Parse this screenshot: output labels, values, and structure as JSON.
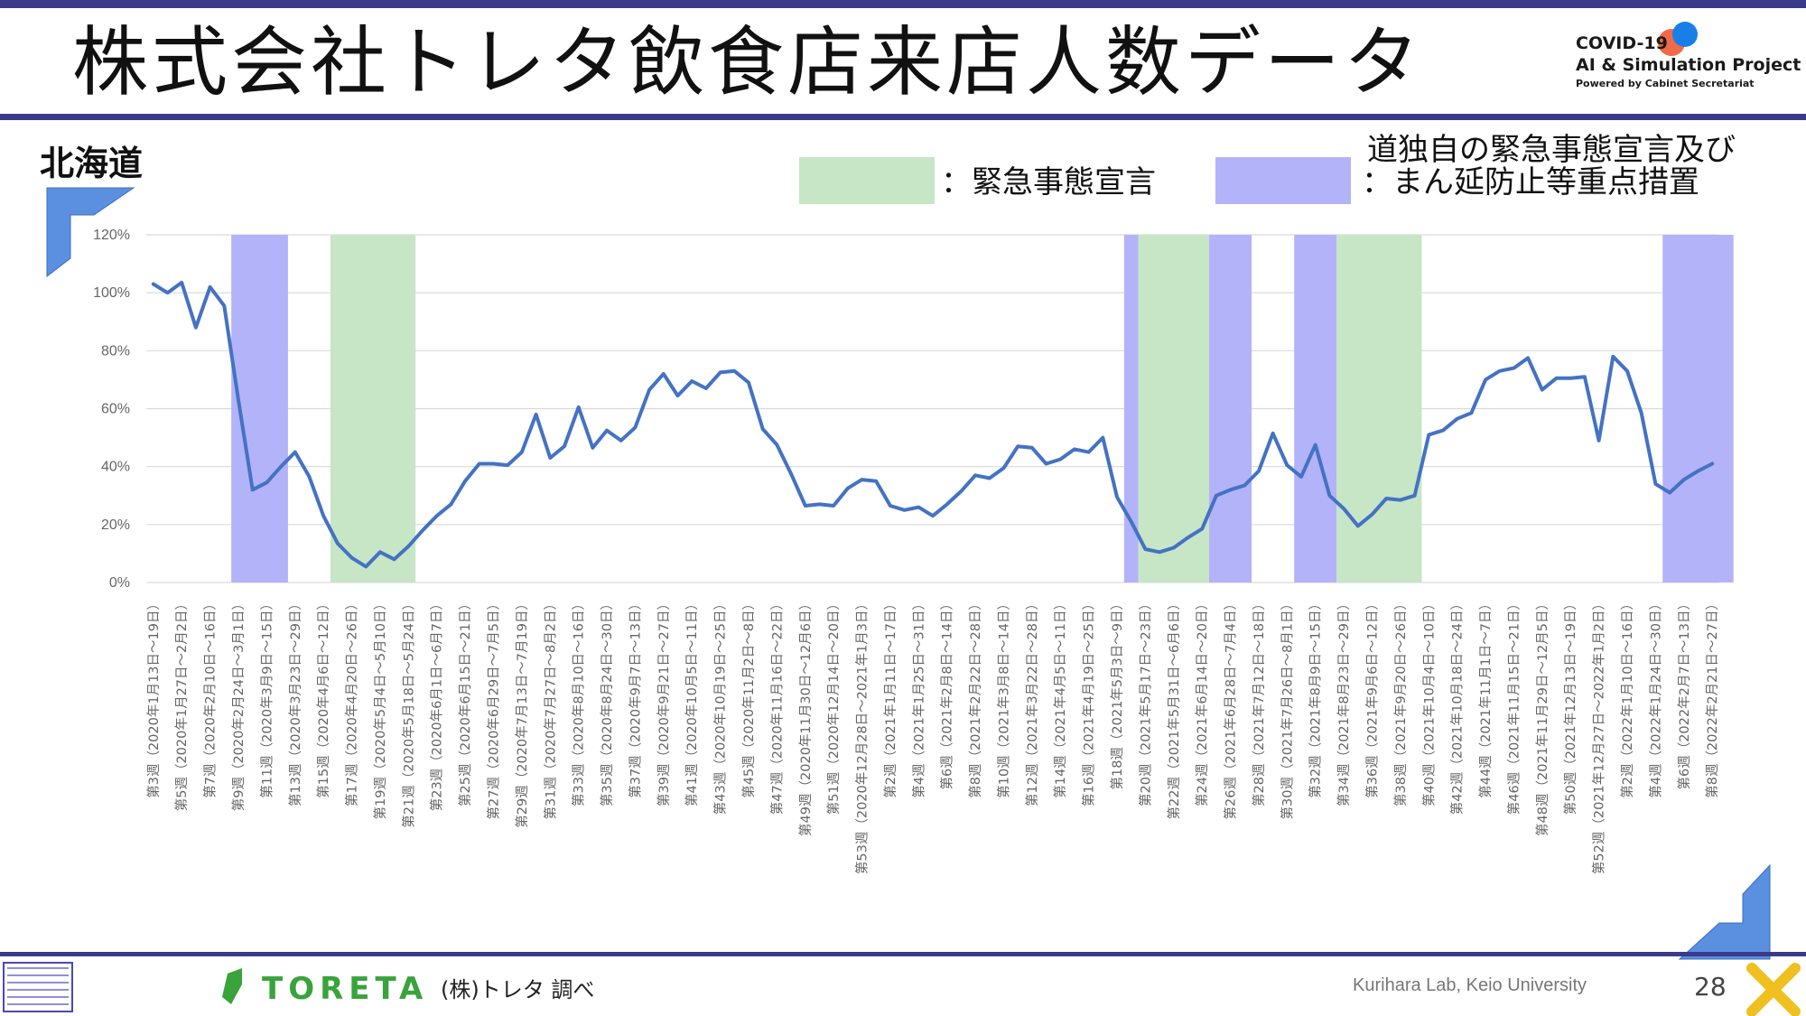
{
  "slide": {
    "title": "株式会社トレタ飲食店来店人数データ",
    "region": "北海道",
    "source": "(株)トレタ 調べ",
    "toreta_logo": "TORETA",
    "credit": "Kurihara Lab, Keio University",
    "page_number": "28"
  },
  "covid_logo": {
    "line1": "COVID-19",
    "line2": "AI & Simulation Project",
    "line3": "Powered by Cabinet Secretariat"
  },
  "legend": {
    "emergency_label": "：緊急事態宣言",
    "emergency_color": "#c6e6c6",
    "priority_note": "道独自の緊急事態宣言及び",
    "priority_label": "：まん延防止等重点措置",
    "priority_color": "#b3b3fa"
  },
  "chart_data": {
    "type": "line",
    "series": [
      {
        "color": "#4472c4",
        "values": [
          103,
          100,
          103.5,
          88,
          102,
          95.5,
          63,
          32,
          34.5,
          40,
          45,
          36.5,
          23,
          13.5,
          8.5,
          5.5,
          10.5,
          8,
          12.5,
          18,
          23,
          27,
          35,
          41,
          41,
          40.5,
          45,
          58,
          43,
          47,
          60.5,
          46.5,
          52.5,
          49,
          53.5,
          66.5,
          72,
          64.5,
          69.5,
          67,
          72.5,
          73,
          69,
          53,
          47.5,
          37.5,
          26.5,
          27,
          26.5,
          32.5,
          35.5,
          35,
          26.5,
          25,
          26,
          23,
          27,
          31.5,
          37,
          36,
          39.5,
          47,
          46.5,
          41,
          42.5,
          46,
          45,
          50,
          29.5,
          21,
          11.5,
          10.5,
          12,
          15.5,
          18.5,
          30,
          32,
          33.5,
          38.5,
          51.5,
          40.5,
          36.5,
          47.5,
          30,
          25.5,
          19.5,
          23.5,
          29,
          28.5,
          30,
          51,
          52.5,
          56.5,
          58.5,
          70,
          73,
          74,
          77.5,
          66.5,
          70.5,
          70.5,
          71,
          49,
          78,
          73,
          58.5,
          34,
          31,
          35.5,
          38.5,
          41
        ]
      }
    ],
    "ylim": [
      0,
      120
    ],
    "yticks": [
      "0%",
      "20%",
      "40%",
      "60%",
      "80%",
      "100%",
      "120%"
    ],
    "x_labels": [
      "第3週（2020年1月13日～19日）",
      "第5週（2020年1月27日～2月2日）",
      "第7週（2020年2月10日～16日）",
      "第9週（2020年2月24日～3月1日）",
      "第11週（2020年3月9日～15日）",
      "第13週（2020年3月23日～29日）",
      "第15週（2020年4月6日～12日）",
      "第17週（2020年4月20日～26日）",
      "第19週（2020年5月4日～5月10日）",
      "第21週（2020年5月18日～5月24日）",
      "第23週（2020年6月1日～6月7日）",
      "第25週（2020年6月15日～21日）",
      "第27週（2020年6月29日～7月5日）",
      "第29週（2020年7月13日～7月19日）",
      "第31週（2020年7月27日～8月2日）",
      "第33週（2020年8月10日～16日）",
      "第35週（2020年8月24日～30日）",
      "第37週（2020年9月7日～13日）",
      "第39週（2020年9月21日～27日）",
      "第41週（2020年10月5日～11日）",
      "第43週（2020年10月19日～25日）",
      "第45週（2020年11月2日～8日）",
      "第47週（2020年11月16日～22日）",
      "第49週（2020年11月30日～12月6日）",
      "第51週（2020年12月14日～20日）",
      "第53週（2020年12月28日～2021年1月3日）",
      "第2週（2021年1月11日～17日）",
      "第4週（2021年1月25日～31日）",
      "第6週（2021年2月8日～14日）",
      "第8週（2021年2月22日～28日）",
      "第10週（2021年3月8日～14日）",
      "第12週（2021年3月22日～28日）",
      "第14週（2021年4月5日～11日）",
      "第16週（2021年4月19日～25日）",
      "第18週（2021年5月3日～9日）",
      "第20週（2021年5月17日～23日）",
      "第22週（2021年5月31日～6月6日）",
      "第24週（2021年6月14日～20日）",
      "第26週（2021年6月28日～7月4日）",
      "第28週（2021年7月12日～18日）",
      "第30週（2021年7月26日～8月1日）",
      "第32週（2021年8月9日～15日）",
      "第34週（2021年8月23日～29日）",
      "第36週（2021年9月6日～12日）",
      "第38週（2021年9月20日～26日）",
      "第40週（2021年10月4日～10日）",
      "第42週（2021年10月18日～24日）",
      "第44週（2021年11月1日～7日）",
      "第46週（2021年11月15日～21日）",
      "第48週（2021年11月29日～12月5日）",
      "第50週（2021年12月13日～19日）",
      "第52週（2021年12月27日～2022年1月2日）",
      "第2週（2022年1月10日～16日）",
      "第4週（2022年1月24日～30日）",
      "第6週（2022年2月7日～13日）",
      "第8週（2022年2月21日～27日）"
    ],
    "bands": [
      {
        "type": "priority",
        "from": 5.5,
        "to": 9.5
      },
      {
        "type": "emergency",
        "from": 12.5,
        "to": 18.5
      },
      {
        "type": "priority",
        "from": 68.5,
        "to": 69.5
      },
      {
        "type": "emergency",
        "from": 69.5,
        "to": 74.5
      },
      {
        "type": "priority",
        "from": 74.5,
        "to": 77.5
      },
      {
        "type": "priority",
        "from": 80.5,
        "to": 83.5
      },
      {
        "type": "emergency",
        "from": 83.5,
        "to": 89.5
      },
      {
        "type": "priority",
        "from": 106.5,
        "to": 111.5
      }
    ],
    "grid": true,
    "legend_position": "top-right"
  }
}
